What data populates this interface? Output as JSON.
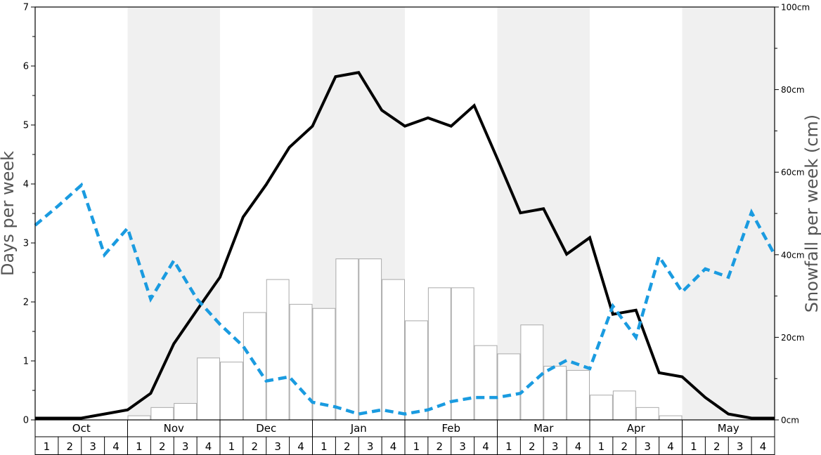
{
  "chart_data": {
    "type": "bar",
    "ylabel": "Days per week",
    "y2label": "Snowfall per week (cm)",
    "ylim": [
      0,
      7
    ],
    "y2lim": [
      0,
      100
    ],
    "yticks": [
      "0",
      "1",
      "2",
      "3",
      "4",
      "5",
      "6",
      "7"
    ],
    "y2ticks": [
      "0cm",
      "20cm",
      "40cm",
      "60cm",
      "80cm",
      "100cm"
    ],
    "months": [
      "Oct",
      "Nov",
      "Dec",
      "Jan",
      "Feb",
      "Mar",
      "Apr",
      "May"
    ],
    "weeks": [
      "1",
      "2",
      "3",
      "4"
    ],
    "shaded_months": [
      "Nov",
      "Jan",
      "Mar",
      "May"
    ],
    "colors": {
      "bar_fill": "#ffffff",
      "bar_edge": "#aaaaaa",
      "solid_line": "#000000",
      "dashed_line": "#1a9be0",
      "shade": "#f0f0f0"
    },
    "series": [
      {
        "kind": "bar",
        "axis": "right",
        "values": [
          0,
          0,
          0,
          0,
          1,
          3,
          4,
          15,
          14,
          26,
          34,
          28,
          27,
          39,
          39,
          34,
          24,
          32,
          32,
          18,
          16,
          23,
          13,
          12,
          6,
          7,
          3,
          1,
          0,
          0,
          0,
          0
        ]
      },
      {
        "kind": "line",
        "style": "solid",
        "axis": "left",
        "values": [
          0.03,
          0.03,
          0.03,
          0.1,
          0.17,
          0.45,
          1.29,
          1.86,
          2.42,
          3.44,
          3.99,
          4.62,
          4.98,
          5.82,
          5.89,
          5.25,
          4.98,
          5.12,
          4.98,
          5.33,
          4.43,
          3.51,
          3.58,
          2.81,
          3.09,
          1.79,
          1.86,
          0.8,
          0.73,
          0.38,
          0.1,
          0.03,
          0.03
        ]
      },
      {
        "kind": "line",
        "style": "dashed",
        "axis": "left",
        "values": [
          3.3,
          3.63,
          3.98,
          2.8,
          3.25,
          2.05,
          2.7,
          2.05,
          1.62,
          1.25,
          0.66,
          0.73,
          0.3,
          0.22,
          0.1,
          0.17,
          0.1,
          0.17,
          0.31,
          0.38,
          0.38,
          0.45,
          0.8,
          1.01,
          0.87,
          1.93,
          1.4,
          2.77,
          2.17,
          2.56,
          2.42,
          3.52,
          2.8
        ]
      }
    ]
  }
}
